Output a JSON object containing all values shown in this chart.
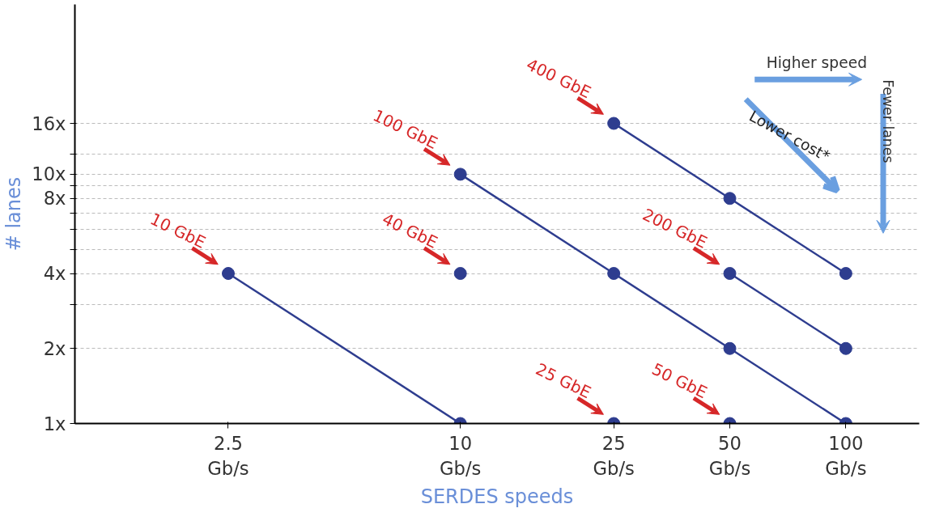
{
  "chart_data": {
    "type": "line",
    "xlabel": "SERDES speeds",
    "ylabel": "# lanes",
    "log": "xy",
    "xlim": [
      1.0,
      155
    ],
    "ylim": [
      1,
      48
    ],
    "xticks": [
      {
        "value": 2.5,
        "label": "2.5\nGb/s"
      },
      {
        "value": 10,
        "label": "10\nGb/s"
      },
      {
        "value": 25,
        "label": "25\nGb/s"
      },
      {
        "value": 50,
        "label": "50\nGb/s"
      },
      {
        "value": 100,
        "label": "100\nGb/s"
      }
    ],
    "yticks": [
      {
        "value": 1,
        "label": "1x"
      },
      {
        "value": 2,
        "label": "2x"
      },
      {
        "value": 3,
        "label": null
      },
      {
        "value": 4,
        "label": "4x"
      },
      {
        "value": 5,
        "label": null
      },
      {
        "value": 6,
        "label": null
      },
      {
        "value": 7,
        "label": null
      },
      {
        "value": 8,
        "label": "8x"
      },
      {
        "value": 9,
        "label": null
      },
      {
        "value": 10,
        "label": "10x"
      },
      {
        "value": 12,
        "label": null
      },
      {
        "value": 16,
        "label": "16x"
      }
    ],
    "grid": "y",
    "marker": "circle",
    "line_style": "solid",
    "series": [
      {
        "name": "10 GbE",
        "color": "#2e3d8f",
        "x": [
          2.5,
          10
        ],
        "values": [
          4,
          1
        ]
      },
      {
        "name": "40 GbE",
        "color": "#2e3d8f",
        "x": [
          10
        ],
        "values": [
          4
        ]
      },
      {
        "name": "100 GbE",
        "color": "#2e3d8f",
        "x": [
          10,
          25,
          50,
          100
        ],
        "values": [
          10,
          4,
          2,
          1
        ]
      },
      {
        "name": "400 GbE",
        "color": "#2e3d8f",
        "x": [
          25,
          50,
          100
        ],
        "values": [
          16,
          8,
          4
        ]
      },
      {
        "name": "200 GbE",
        "color": "#2e3d8f",
        "x": [
          50,
          100
        ],
        "values": [
          4,
          2
        ]
      },
      {
        "name": "25 GbE",
        "color": "#2e3d8f",
        "x": [
          25
        ],
        "values": [
          1
        ]
      },
      {
        "name": "50 GbE",
        "color": "#2e3d8f",
        "x": [
          50
        ],
        "values": [
          1
        ]
      }
    ],
    "annotations": [
      "Higher speed",
      "Lower cost*",
      "Fewer lanes"
    ]
  }
}
